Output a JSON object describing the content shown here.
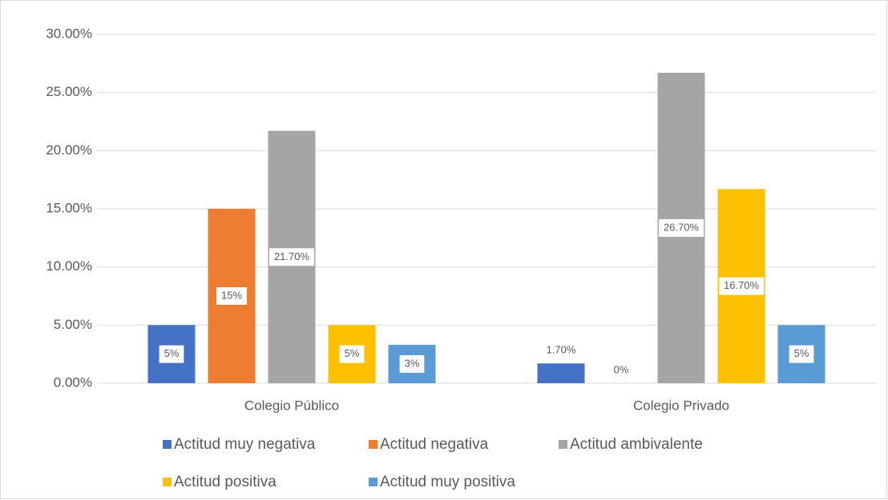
{
  "chart_data": {
    "type": "bar",
    "categories": [
      "Colegio Público",
      "Colegio Privado"
    ],
    "series": [
      {
        "name": "Actitud muy negativa",
        "color": "#4472c4",
        "values": [
          5,
          1.7
        ],
        "value_labels": [
          "5%",
          "1.70%"
        ]
      },
      {
        "name": "Actitud negativa",
        "color": "#ed7d31",
        "values": [
          15,
          0
        ],
        "value_labels": [
          "15%",
          "0%"
        ]
      },
      {
        "name": "Actitud ambivalente",
        "color": "#a5a5a5",
        "values": [
          21.7,
          26.7
        ],
        "value_labels": [
          "21.70%",
          "26.70%"
        ]
      },
      {
        "name": "Actitud positiva",
        "color": "#ffc000",
        "values": [
          5,
          16.7
        ],
        "value_labels": [
          "5%",
          "16.70%"
        ]
      },
      {
        "name": "Actitud muy positiva",
        "color": "#5b9bd5",
        "values": [
          3.3,
          5
        ],
        "value_labels": [
          "3%",
          "5%"
        ]
      }
    ],
    "ylim": [
      0,
      30
    ],
    "yticks": [
      {
        "value": 0,
        "label": "0.00%"
      },
      {
        "value": 5,
        "label": "5.00%"
      },
      {
        "value": 10,
        "label": "10.00%"
      },
      {
        "value": 15,
        "label": "15.00%"
      },
      {
        "value": 20,
        "label": "20.00%"
      },
      {
        "value": 25,
        "label": "25.00%"
      },
      {
        "value": 30,
        "label": "30.00%"
      }
    ],
    "grid": true,
    "legend": "bottom"
  }
}
